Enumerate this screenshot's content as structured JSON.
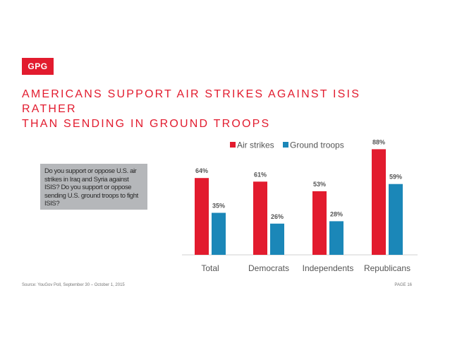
{
  "logo": {
    "text": "GPG"
  },
  "title": {
    "line1": "AMERICANS SUPPORT AIR STRIKES AGAINST ISIS RATHER",
    "line2": "THAN SENDING IN GROUND TROOPS"
  },
  "question": "Do you support or oppose U.S. air strikes in Iraq and Syria against ISIS? Do you support or oppose sending U.S. ground troops to fight ISIS?",
  "footer": {
    "source": "Source: YouGov Poll, September 30 – October 1, 2015",
    "page": "PAGE 16"
  },
  "colors": {
    "air_strikes": "#e21b2e",
    "ground_troops": "#1b87b8",
    "accent": "#e21b2e"
  },
  "chart_data": {
    "type": "bar",
    "categories": [
      "Total",
      "Democrats",
      "Independents",
      "Republicans"
    ],
    "series": [
      {
        "name": "Air strikes",
        "values": [
          64,
          61,
          53,
          88
        ],
        "labels": [
          "64%",
          "61%",
          "53%",
          "88%"
        ]
      },
      {
        "name": "Ground troops",
        "values": [
          35,
          26,
          28,
          59
        ],
        "labels": [
          "35%",
          "26%",
          "28%",
          "59%"
        ]
      }
    ],
    "ylim": [
      0,
      100
    ],
    "legend": "top",
    "grid": false
  }
}
